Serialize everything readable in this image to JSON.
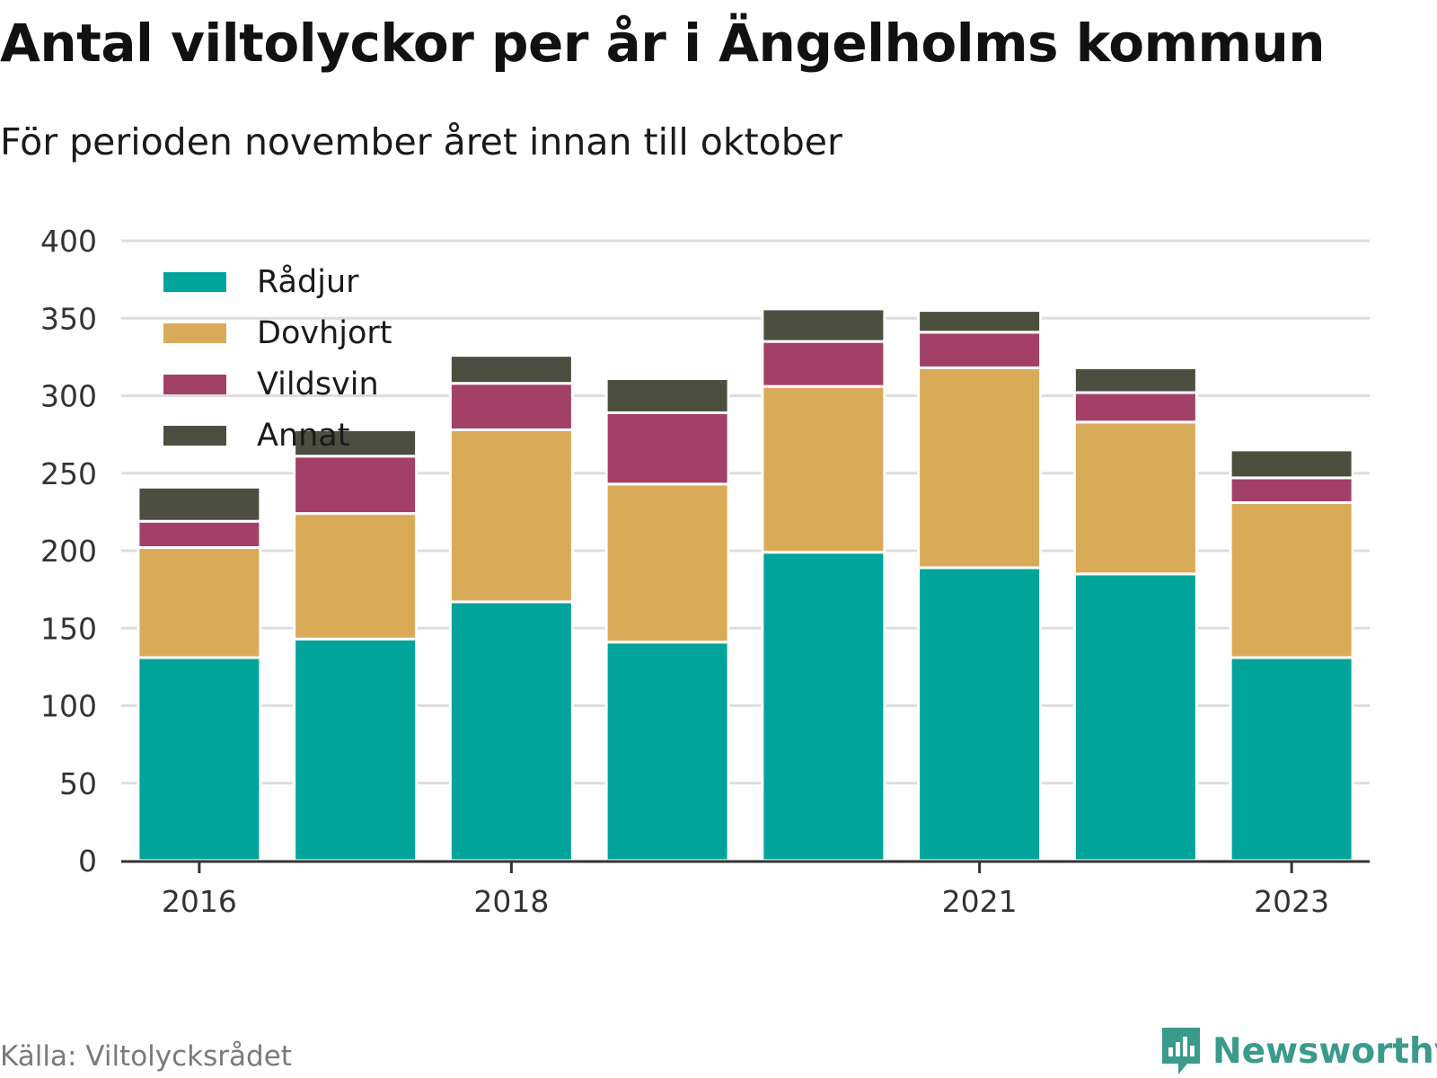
{
  "title": "Antal viltolyckor per år i Ängelholms kommun",
  "subtitle": "För perioden november året innan till oktober",
  "source": "Källa: Viltolycksrådet",
  "brand": "Newsworthy",
  "colors": {
    "Rådjur": "#00a49a",
    "Dovhjort": "#d9ab58",
    "Vildsvin": "#a34067",
    "Annat": "#4c4f40",
    "grid": "#dddddd",
    "axis": "#333333",
    "brand": "#3a9a8c"
  },
  "legend": [
    {
      "label": "Rådjur",
      "color": "#00a49a"
    },
    {
      "label": "Dovhjort",
      "color": "#d9ab58"
    },
    {
      "label": "Vildsvin",
      "color": "#a34067"
    },
    {
      "label": "Annat",
      "color": "#4c4f40"
    }
  ],
  "chart_data": {
    "type": "bar",
    "stacked": true,
    "categories": [
      "2016",
      "2017",
      "2018",
      "2019",
      "2020",
      "2021",
      "2022",
      "2023"
    ],
    "x_tick_labels": [
      "2016",
      "",
      "2018",
      "",
      "",
      "2021",
      "",
      "2023"
    ],
    "series": [
      {
        "name": "Rådjur",
        "values": [
          131,
          143,
          167,
          141,
          199,
          189,
          185,
          131
        ]
      },
      {
        "name": "Dovhjort",
        "values": [
          71,
          81,
          111,
          102,
          107,
          129,
          98,
          100
        ]
      },
      {
        "name": "Vildsvin",
        "values": [
          17,
          37,
          30,
          46,
          29,
          23,
          19,
          16
        ]
      },
      {
        "name": "Annat",
        "values": [
          22,
          17,
          18,
          22,
          21,
          14,
          16,
          18
        ]
      }
    ],
    "ylim": [
      0,
      400
    ],
    "yticks": [
      0,
      50,
      100,
      150,
      200,
      250,
      300,
      350,
      400
    ],
    "grid": true,
    "legend_position": "top-left"
  }
}
